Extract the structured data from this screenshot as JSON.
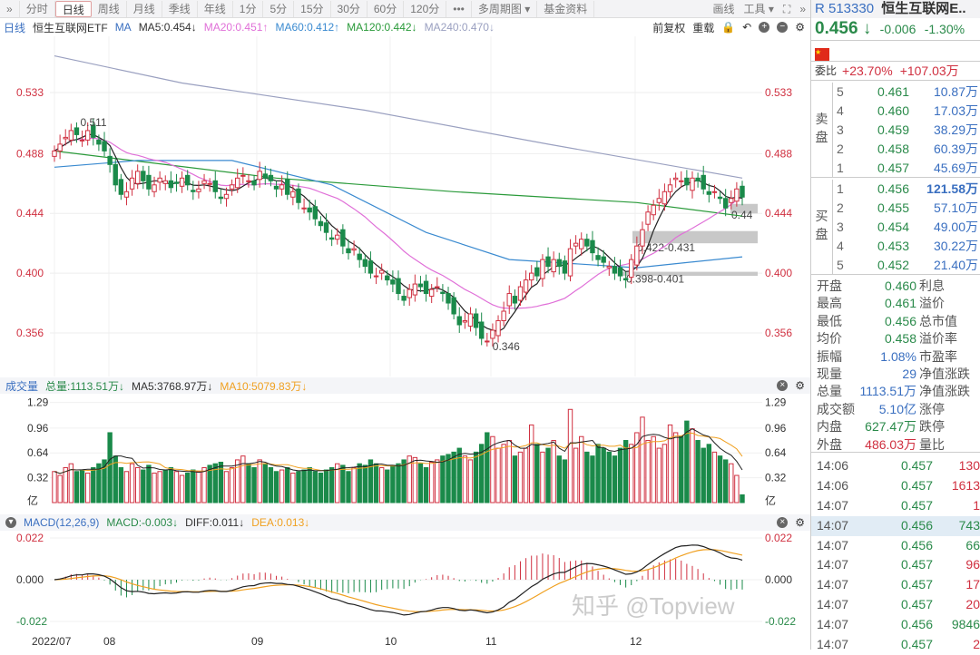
{
  "toolbar": {
    "items": [
      "分时",
      "日线",
      "周线",
      "月线",
      "季线",
      "年线",
      "1分",
      "5分",
      "15分",
      "30分",
      "60分",
      "120分",
      "•••",
      "多周期图 ▾",
      "基金资料"
    ],
    "active": 1,
    "draw": "画线",
    "tools": "工具 ▾"
  },
  "info": {
    "period": "日线",
    "name": "恒生互联网ETF",
    "ma": "MA",
    "ma5": "MA5:0.454↓",
    "ma20": "MA20:0.451↑",
    "ma60": "MA60:0.412↑",
    "ma120": "MA120:0.442↓",
    "ma240": "MA240:0.470↓",
    "fq": "前复权",
    "reload": "重载"
  },
  "colors": {
    "up": "#d03040",
    "down": "#1a8a4a",
    "ma5": "#222222",
    "ma20": "#e070d8",
    "ma60": "#3a8ad0",
    "ma120": "#2a9a3a",
    "ma240": "#9aa0c0",
    "dea": "#f0a020"
  },
  "price_axis": [
    "0.533",
    "0.488",
    "0.444",
    "0.400",
    "0.356"
  ],
  "annotations": {
    "high": "0.511",
    "low": "0.346",
    "gap1": "0.422-0.431",
    "gap2": "0.398-0.401",
    "gap3": "0.44"
  },
  "volume": {
    "title": "成交量",
    "total": "总量:1113.51万↓",
    "ma5": "MA5:3768.97万↓",
    "ma10": "MA10:5079.83万↓",
    "axis": [
      "1.29",
      "0.96",
      "0.64",
      "0.32",
      "亿"
    ]
  },
  "macd": {
    "title": "MACD(12,26,9)",
    "macd": "MACD:-0.003↓",
    "diff": "DIFF:0.011↓",
    "dea": "DEA:0.013↓",
    "axis": [
      "0.022",
      "0.000",
      "-0.022"
    ]
  },
  "xaxis": [
    "2022/07",
    "08",
    "09",
    "10",
    "11",
    "12"
  ],
  "watermark": "知乎 @Topview",
  "chart_data": {
    "type": "candlestick",
    "closes": [
      0.49,
      0.495,
      0.5,
      0.505,
      0.502,
      0.498,
      0.505,
      0.5,
      0.495,
      0.49,
      0.48,
      0.465,
      0.458,
      0.46,
      0.47,
      0.475,
      0.468,
      0.462,
      0.465,
      0.47,
      0.468,
      0.463,
      0.466,
      0.47,
      0.465,
      0.46,
      0.462,
      0.468,
      0.466,
      0.46,
      0.455,
      0.458,
      0.465,
      0.47,
      0.472,
      0.468,
      0.465,
      0.475,
      0.47,
      0.468,
      0.462,
      0.465,
      0.458,
      0.46,
      0.452,
      0.448,
      0.445,
      0.44,
      0.435,
      0.43,
      0.425,
      0.428,
      0.42,
      0.415,
      0.418,
      0.41,
      0.405,
      0.4,
      0.398,
      0.402,
      0.395,
      0.392,
      0.385,
      0.38,
      0.388,
      0.392,
      0.39,
      0.385,
      0.388,
      0.39,
      0.385,
      0.378,
      0.37,
      0.362,
      0.365,
      0.37,
      0.36,
      0.352,
      0.35,
      0.358,
      0.365,
      0.372,
      0.385,
      0.378,
      0.39,
      0.395,
      0.4,
      0.398,
      0.41,
      0.405,
      0.41,
      0.405,
      0.4,
      0.418,
      0.422,
      0.425,
      0.42,
      0.415,
      0.41,
      0.408,
      0.405,
      0.4,
      0.398,
      0.395,
      0.41,
      0.42,
      0.432,
      0.445,
      0.45,
      0.455,
      0.46,
      0.465,
      0.47,
      0.468,
      0.465,
      0.47,
      0.468,
      0.462,
      0.458,
      0.46,
      0.455,
      0.448,
      0.455,
      0.462,
      0.456
    ],
    "volumes": [
      0.4,
      0.35,
      0.45,
      0.5,
      0.4,
      0.42,
      0.38,
      0.45,
      0.5,
      0.55,
      0.9,
      0.6,
      0.45,
      0.4,
      0.5,
      0.45,
      0.42,
      0.48,
      0.38,
      0.4,
      0.42,
      0.45,
      0.4,
      0.35,
      0.38,
      0.42,
      0.4,
      0.45,
      0.48,
      0.5,
      0.52,
      0.4,
      0.45,
      0.55,
      0.6,
      0.5,
      0.45,
      0.55,
      0.5,
      0.45,
      0.4,
      0.42,
      0.45,
      0.38,
      0.4,
      0.42,
      0.45,
      0.4,
      0.38,
      0.42,
      0.45,
      0.5,
      0.48,
      0.4,
      0.45,
      0.5,
      0.48,
      0.55,
      0.5,
      0.45,
      0.42,
      0.48,
      0.5,
      0.55,
      0.6,
      0.58,
      0.5,
      0.45,
      0.52,
      0.55,
      0.6,
      0.62,
      0.65,
      0.7,
      0.6,
      0.55,
      0.65,
      0.75,
      0.9,
      0.85,
      0.7,
      0.75,
      0.8,
      0.6,
      0.65,
      0.7,
      1.0,
      0.75,
      0.65,
      0.7,
      0.8,
      0.6,
      0.55,
      1.2,
      0.7,
      0.85,
      0.65,
      0.6,
      0.75,
      0.7,
      0.65,
      0.6,
      0.7,
      0.8,
      0.75,
      0.9,
      1.1,
      0.8,
      0.85,
      0.7,
      0.75,
      1.0,
      0.9,
      0.85,
      1.05,
      0.95,
      0.8,
      0.7,
      0.75,
      0.65,
      0.6,
      0.55,
      0.5,
      0.35,
      0.1
    ],
    "ma60": [
      [
        0,
        0.478
      ],
      [
        15,
        0.483
      ],
      [
        32,
        0.483
      ],
      [
        50,
        0.465
      ],
      [
        67,
        0.43
      ],
      [
        82,
        0.41
      ],
      [
        105,
        0.404
      ],
      [
        124,
        0.412
      ]
    ],
    "ma120": [
      [
        0,
        0.49
      ],
      [
        40,
        0.47
      ],
      [
        72,
        0.46
      ],
      [
        105,
        0.452
      ],
      [
        124,
        0.442
      ]
    ],
    "ma240": [
      [
        0,
        0.56
      ],
      [
        23,
        0.54
      ],
      [
        56,
        0.52
      ],
      [
        89,
        0.495
      ],
      [
        124,
        0.47
      ]
    ],
    "ylim": [
      0.33,
      0.56
    ]
  },
  "quote": {
    "code": "R 513330",
    "name": "恒生互联网E..",
    "price": "0.456 ↓",
    "change": "-0.006",
    "pct": "-1.30%",
    "weibi_label": "委比",
    "weibi_pct": "+23.70%",
    "weibi_val": "+107.03万",
    "sell_label": "卖盘",
    "buy_label": "买盘",
    "sell": [
      [
        "5",
        "0.461",
        "10.87万"
      ],
      [
        "4",
        "0.460",
        "17.03万"
      ],
      [
        "3",
        "0.459",
        "38.29万"
      ],
      [
        "2",
        "0.458",
        "60.39万"
      ],
      [
        "1",
        "0.457",
        "45.69万"
      ]
    ],
    "buy": [
      [
        "1",
        "0.456",
        "121.58万"
      ],
      [
        "2",
        "0.455",
        "57.10万"
      ],
      [
        "3",
        "0.454",
        "49.00万"
      ],
      [
        "4",
        "0.453",
        "30.22万"
      ],
      [
        "5",
        "0.452",
        "21.40万"
      ]
    ],
    "stats": [
      [
        "开盘",
        "0.460",
        "利息",
        "g"
      ],
      [
        "最高",
        "0.461",
        "溢价",
        "g"
      ],
      [
        "最低",
        "0.456",
        "总市值",
        "g"
      ],
      [
        "均价",
        "0.458",
        "溢价率",
        "g"
      ],
      [
        "振幅",
        "1.08%",
        "市盈率",
        "b"
      ],
      [
        "现量",
        "29",
        "净值涨跌",
        "b"
      ],
      [
        "总量",
        "1113.51万",
        "净值涨跌",
        "b"
      ],
      [
        "成交额",
        "5.10亿",
        "涨停",
        "b"
      ],
      [
        "内盘",
        "627.47万",
        "跌停",
        "g"
      ],
      [
        "外盘",
        "486.03万",
        "量比",
        "r"
      ]
    ],
    "ticks": [
      [
        "14:06",
        "0.457",
        "130",
        "r"
      ],
      [
        "14:06",
        "0.457",
        "1613",
        "r"
      ],
      [
        "14:07",
        "0.457",
        "1",
        "r"
      ],
      [
        "14:07",
        "0.456",
        "743",
        "g"
      ],
      [
        "14:07",
        "0.456",
        "66",
        "g"
      ],
      [
        "14:07",
        "0.457",
        "96",
        "r"
      ],
      [
        "14:07",
        "0.457",
        "17",
        "r"
      ],
      [
        "14:07",
        "0.457",
        "20",
        "r"
      ],
      [
        "14:07",
        "0.456",
        "9846",
        "g"
      ],
      [
        "14:07",
        "0.457",
        "2",
        "r"
      ]
    ]
  }
}
